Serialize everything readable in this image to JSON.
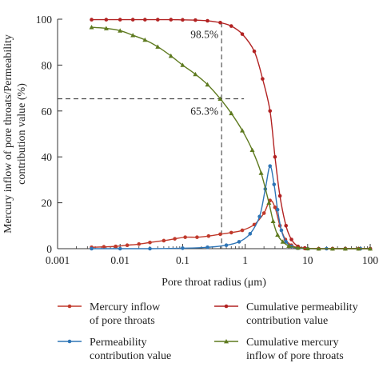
{
  "chart_data": {
    "type": "line",
    "title": "",
    "xlabel": "Pore throat radius (μm)",
    "ylabel_lines": [
      "Mercury inflow of pore throats/Permeability",
      "contribution value (%)"
    ],
    "x_scale": "log",
    "xlim": [
      0.001,
      100
    ],
    "ylim": [
      0,
      100
    ],
    "x_ticks": [
      0.001,
      0.01,
      0.1,
      1,
      10,
      100
    ],
    "x_tick_labels": [
      "0.001",
      "0.01",
      "0.1",
      "1",
      "10",
      "100"
    ],
    "y_ticks": [
      0,
      20,
      40,
      60,
      80,
      100
    ],
    "y_tick_labels": [
      "0",
      "20",
      "40",
      "60",
      "80",
      "100"
    ],
    "grid": false,
    "legend_position": "bottom",
    "series": [
      {
        "name_lines": [
          "Mercury inflow",
          "of pore throats"
        ],
        "color": "#c0392b",
        "marker": "circle",
        "points": [
          [
            0.0035,
            0.6
          ],
          [
            0.0055,
            0.8
          ],
          [
            0.0085,
            1.0
          ],
          [
            0.013,
            1.5
          ],
          [
            0.02,
            2.0
          ],
          [
            0.03,
            2.7
          ],
          [
            0.05,
            3.5
          ],
          [
            0.075,
            4.3
          ],
          [
            0.11,
            5.0
          ],
          [
            0.17,
            5.0
          ],
          [
            0.26,
            5.5
          ],
          [
            0.4,
            6.3
          ],
          [
            0.6,
            7.0
          ],
          [
            0.9,
            8.0
          ],
          [
            1.4,
            10.5
          ],
          [
            2.0,
            15.5
          ],
          [
            2.5,
            21.0
          ],
          [
            3.0,
            18.0
          ],
          [
            3.6,
            10.0
          ],
          [
            4.4,
            4.0
          ],
          [
            5.5,
            1.5
          ],
          [
            7.0,
            0.4
          ],
          [
            9.0,
            0.1
          ],
          [
            15,
            0
          ],
          [
            25,
            0
          ],
          [
            40,
            0
          ],
          [
            65,
            0
          ],
          [
            100,
            0
          ]
        ]
      },
      {
        "name_lines": [
          "Permeability",
          "contribution value"
        ],
        "color": "#2e75b6",
        "marker": "circle",
        "points": [
          [
            0.0035,
            0
          ],
          [
            0.01,
            0
          ],
          [
            0.03,
            0
          ],
          [
            0.1,
            0.2
          ],
          [
            0.25,
            0.6
          ],
          [
            0.5,
            1.5
          ],
          [
            0.8,
            3.0
          ],
          [
            1.2,
            6.5
          ],
          [
            1.7,
            14.0
          ],
          [
            2.1,
            26.0
          ],
          [
            2.5,
            36.0
          ],
          [
            2.9,
            28.0
          ],
          [
            3.3,
            17.0
          ],
          [
            3.8,
            8.0
          ],
          [
            4.5,
            3.0
          ],
          [
            5.5,
            1.0
          ],
          [
            7.0,
            0.2
          ],
          [
            10,
            0
          ],
          [
            20,
            0
          ],
          [
            40,
            0
          ],
          [
            70,
            0
          ],
          [
            100,
            0
          ]
        ]
      },
      {
        "name_lines": [
          "Cumulative permeability",
          "contribution value"
        ],
        "color": "#b22222",
        "marker": "circle",
        "points": [
          [
            0.0035,
            99.8
          ],
          [
            0.006,
            99.8
          ],
          [
            0.01,
            99.8
          ],
          [
            0.016,
            99.8
          ],
          [
            0.025,
            99.8
          ],
          [
            0.04,
            99.8
          ],
          [
            0.065,
            99.8
          ],
          [
            0.1,
            99.7
          ],
          [
            0.16,
            99.6
          ],
          [
            0.25,
            99.3
          ],
          [
            0.4,
            98.5
          ],
          [
            0.6,
            97.0
          ],
          [
            0.9,
            93.5
          ],
          [
            1.4,
            86.0
          ],
          [
            1.9,
            74.0
          ],
          [
            2.5,
            60.0
          ],
          [
            3.0,
            40.0
          ],
          [
            3.6,
            23.0
          ],
          [
            4.5,
            10.0
          ],
          [
            5.5,
            4.0
          ],
          [
            7.0,
            1.0
          ],
          [
            9.0,
            0.3
          ],
          [
            15,
            0
          ],
          [
            25,
            0
          ],
          [
            40,
            0
          ],
          [
            65,
            0
          ],
          [
            100,
            0
          ]
        ]
      },
      {
        "name_lines": [
          "Cumulative mercury",
          "inflow of pore throats"
        ],
        "color": "#5e7a1f",
        "marker": "triangle",
        "points": [
          [
            0.0035,
            96.5
          ],
          [
            0.006,
            96.0
          ],
          [
            0.01,
            95.0
          ],
          [
            0.016,
            93.0
          ],
          [
            0.025,
            91.0
          ],
          [
            0.04,
            88.0
          ],
          [
            0.065,
            84.0
          ],
          [
            0.1,
            80.0
          ],
          [
            0.16,
            76.0
          ],
          [
            0.25,
            71.5
          ],
          [
            0.4,
            65.3
          ],
          [
            0.6,
            59.0
          ],
          [
            0.9,
            51.5
          ],
          [
            1.3,
            43.0
          ],
          [
            1.8,
            33.0
          ],
          [
            2.4,
            20.0
          ],
          [
            2.8,
            12.0
          ],
          [
            3.3,
            6.0
          ],
          [
            4.0,
            3.0
          ],
          [
            5.0,
            1.2
          ],
          [
            7.0,
            0.4
          ],
          [
            10,
            0.1
          ],
          [
            15,
            0
          ],
          [
            25,
            0
          ],
          [
            40,
            0
          ],
          [
            65,
            0
          ],
          [
            100,
            0
          ]
        ]
      }
    ],
    "annotations": [
      {
        "text": "98.5%",
        "x": 0.42,
        "y": 98.5,
        "guide": "vertical"
      },
      {
        "text": "65.3%",
        "x": 0.42,
        "y": 65.3,
        "guide": "horizontal"
      }
    ]
  }
}
